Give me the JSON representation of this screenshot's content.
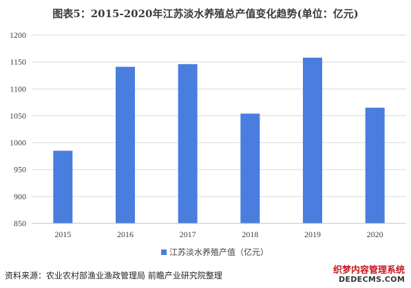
{
  "title": "图表5：2015-2020年江苏淡水养殖总产值变化趋势(单位：亿元)",
  "source": "资料来源：农业农村部渔业渔政管理局 前瞻产业研究院整理",
  "watermark": {
    "cn": "织梦内容管理系统",
    "en": "DEDECMS.COM"
  },
  "colors": {
    "bar": "#4a7ede",
    "grid": "#d9d9d9",
    "axis": "#bfbfbf"
  },
  "chart_data": {
    "type": "bar",
    "categories": [
      "2015",
      "2016",
      "2017",
      "2018",
      "2019",
      "2020"
    ],
    "series": [
      {
        "name": "江苏淡水养殖产值（亿元）",
        "values": [
          985,
          1141,
          1146,
          1054,
          1158,
          1065
        ]
      }
    ],
    "ylim": [
      850,
      1200
    ],
    "yticks": [
      850,
      900,
      950,
      1000,
      1050,
      1100,
      1150,
      1200
    ],
    "grid": true,
    "legend": "bottom"
  }
}
